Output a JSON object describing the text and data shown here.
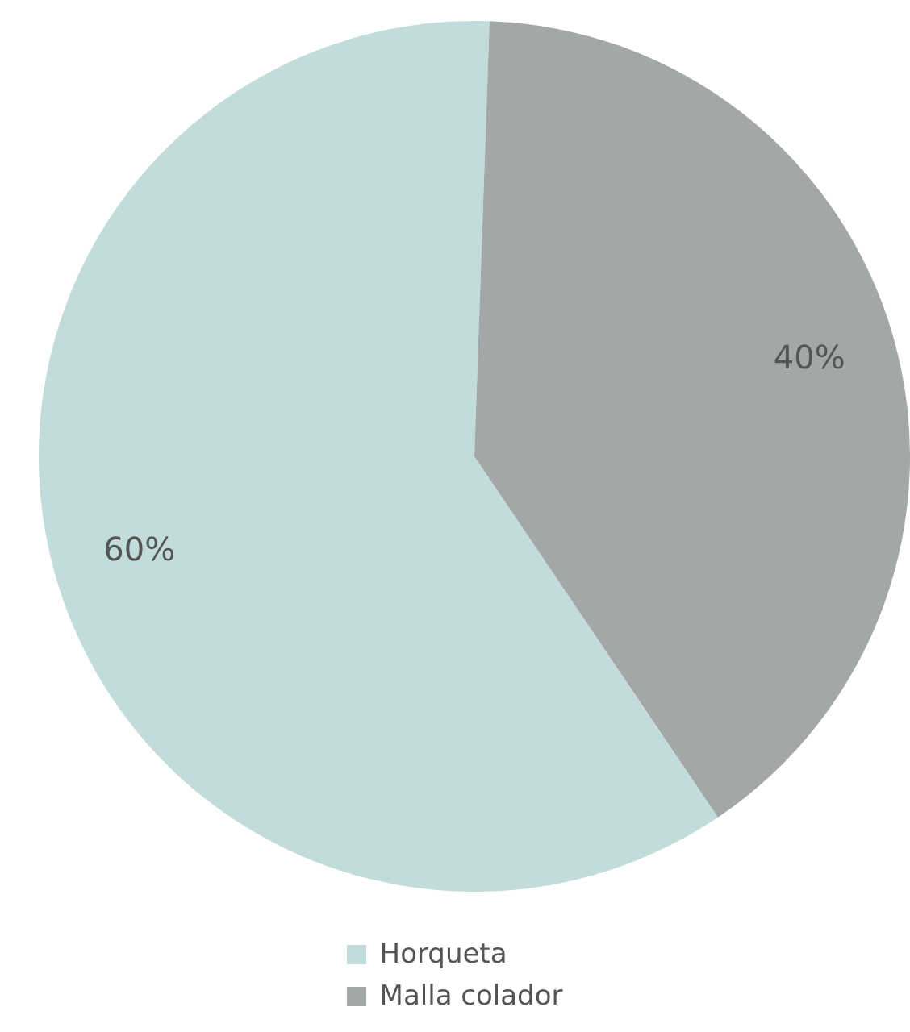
{
  "chart_data": {
    "type": "pie",
    "categories": [
      "Horqueta",
      "Malla colador"
    ],
    "values": [
      60,
      40
    ],
    "colors": [
      "#c2dcdc",
      "#a3a7a8"
    ],
    "value_labels": [
      "60%",
      "40%"
    ],
    "legend": "bottom"
  }
}
